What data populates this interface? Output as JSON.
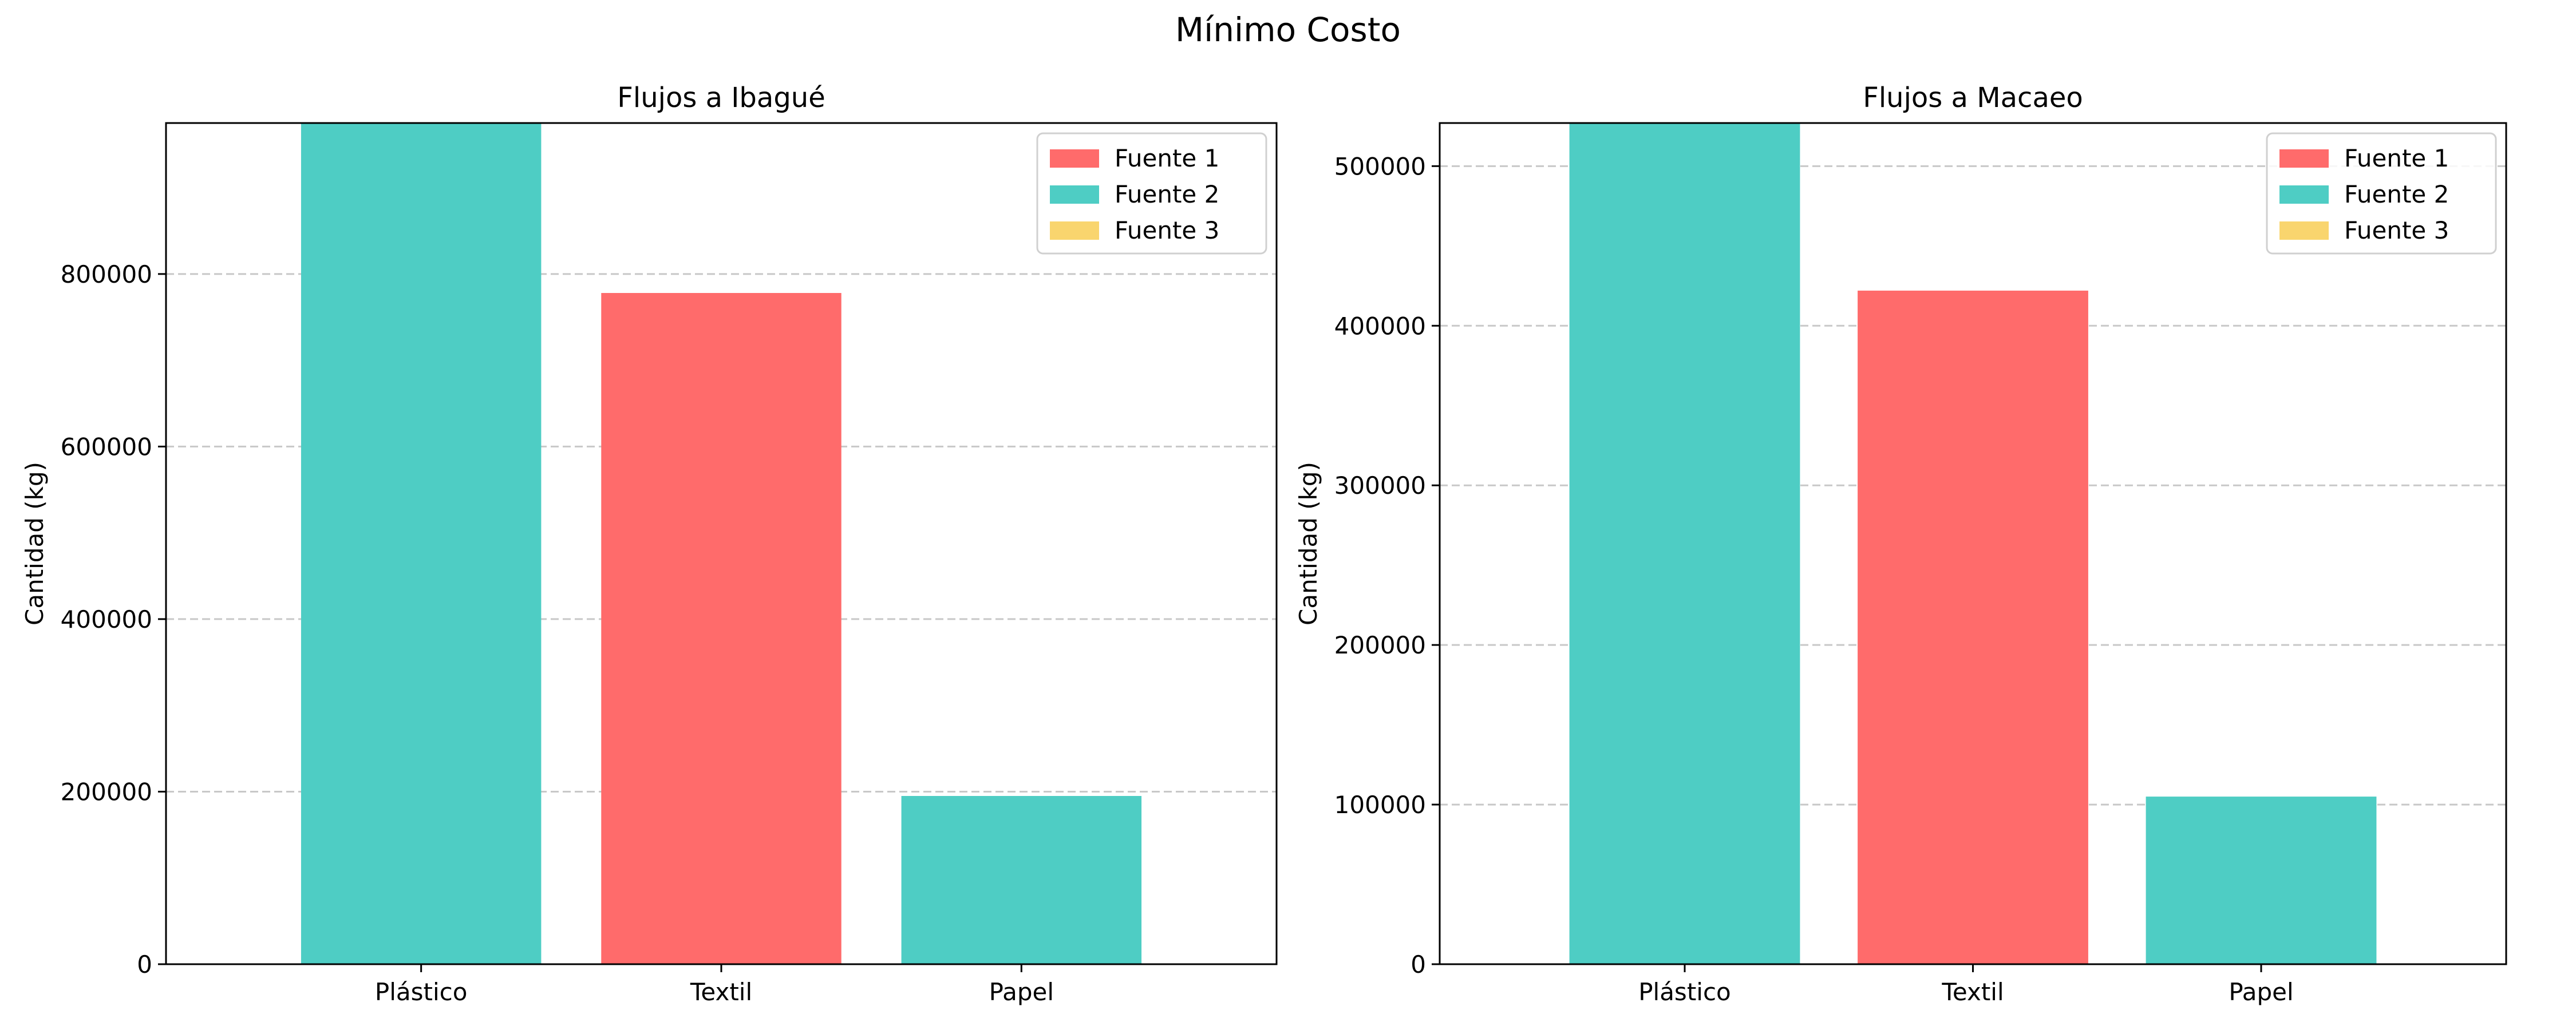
{
  "title": "Mínimo Costo",
  "colors": {
    "fuente1": "#ff6b6b",
    "fuente2": "#4ecdc4",
    "fuente3": "#f9d56e",
    "grid": "#c8c8c8"
  },
  "chart_data": [
    {
      "type": "bar",
      "title": "Flujos a Ibagué",
      "xlabel": "",
      "ylabel": "Cantidad (kg)",
      "categories": [
        "Plástico",
        "Textil",
        "Papel"
      ],
      "ylim": [
        0,
        975000
      ],
      "yticks": [
        "0",
        "200000",
        "400000",
        "600000",
        "800000"
      ],
      "ytick_values": [
        0,
        200000,
        400000,
        600000,
        800000
      ],
      "grid": "y-dashed",
      "legend": "top-right",
      "series": [
        {
          "name": "Fuente 1",
          "values": [
            0,
            778000,
            0
          ]
        },
        {
          "name": "Fuente 2",
          "values": [
            975000,
            0,
            195000
          ]
        },
        {
          "name": "Fuente 3",
          "values": [
            0,
            0,
            0
          ]
        }
      ]
    },
    {
      "type": "bar",
      "title": "Flujos a Macaeo",
      "xlabel": "",
      "ylabel": "Cantidad (kg)",
      "categories": [
        "Plástico",
        "Textil",
        "Papel"
      ],
      "ylim": [
        0,
        527000
      ],
      "yticks": [
        "0",
        "100000",
        "200000",
        "300000",
        "400000",
        "500000"
      ],
      "ytick_values": [
        0,
        100000,
        200000,
        300000,
        400000,
        500000
      ],
      "grid": "y-dashed",
      "legend": "top-right",
      "series": [
        {
          "name": "Fuente 1",
          "values": [
            0,
            422000,
            0
          ]
        },
        {
          "name": "Fuente 2",
          "values": [
            527000,
            0,
            105000
          ]
        },
        {
          "name": "Fuente 3",
          "values": [
            0,
            0,
            0
          ]
        }
      ]
    }
  ]
}
